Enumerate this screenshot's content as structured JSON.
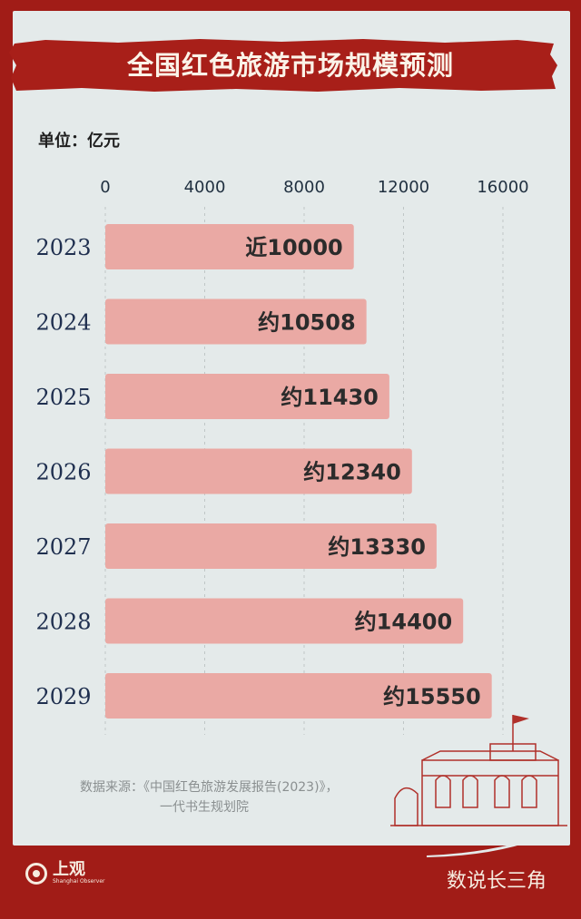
{
  "title": "全国红色旅游市场规模预测",
  "unit": "单位：亿元",
  "colors": {
    "background": "#a11c17",
    "panel": "#e4eaea",
    "bar": "#eaa9a4",
    "text": "#1f2f4f"
  },
  "chart_data": {
    "type": "bar",
    "orientation": "horizontal",
    "categories": [
      "2023",
      "2024",
      "2025",
      "2026",
      "2027",
      "2028",
      "2029"
    ],
    "values": [
      10000,
      10508,
      11430,
      12340,
      13330,
      14400,
      15550
    ],
    "value_labels": [
      "近10000",
      "约10508",
      "约11430",
      "约12340",
      "约13330",
      "约14400",
      "约15550"
    ],
    "xticks": [
      0,
      4000,
      8000,
      12000,
      16000
    ],
    "xlim": [
      0,
      16000
    ],
    "grid": true,
    "tick_position": "top"
  },
  "source": {
    "line1": "数据来源：《中国红色旅游发展报告(2023)》，",
    "line2": "一代书生规划院"
  },
  "footer": {
    "logo_name": "上观",
    "logo_sub": "Shanghai Observer",
    "brand": "数说长三角"
  },
  "icons": {
    "logo": "shanghai-observer-logo-icon",
    "building": "historic-building-icon",
    "flag": "flag-icon"
  }
}
